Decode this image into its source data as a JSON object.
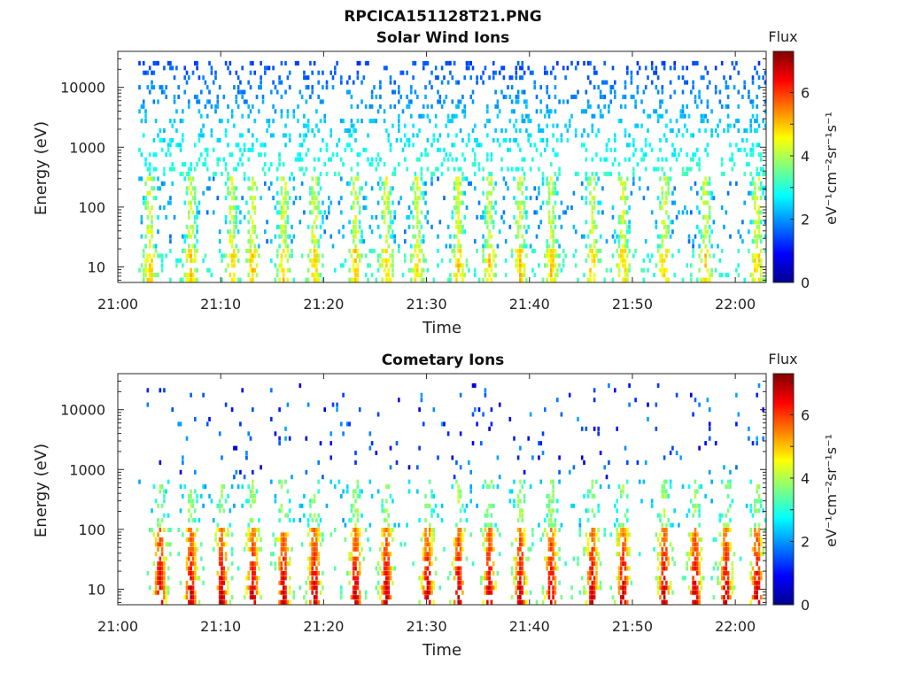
{
  "figure_title": "RPCICA151128T21.PNG",
  "chart_data": [
    {
      "type": "heatmap",
      "title": "Solar Wind Ions",
      "xlabel": "Time",
      "ylabel": "Energy (eV)",
      "x_ticks": [
        "21:00",
        "21:10",
        "21:20",
        "21:30",
        "21:40",
        "21:50",
        "22:00"
      ],
      "x_range": [
        "21:00",
        "22:03"
      ],
      "y_scale": "log",
      "y_ticks": [
        "10",
        "100",
        "1000",
        "10000"
      ],
      "y_range": [
        5.5,
        40000
      ],
      "colorbar": {
        "title": "Flux",
        "label": "eV⁻¹cm⁻²sr⁻¹s⁻¹",
        "ticks": [
          "0",
          "2",
          "4",
          "6"
        ],
        "range": [
          0,
          7.3
        ],
        "colormap": "jet"
      },
      "data_start": "21:02",
      "data_end": "22:03",
      "structure": "sparse scatter of low flux (~1-3) across 20-30000 eV; enhanced bursts up to ~5 below 300 eV",
      "burst_times": [
        "21:03",
        "21:07",
        "21:11",
        "21:13",
        "21:16",
        "21:19",
        "21:23",
        "21:26",
        "21:29",
        "21:33",
        "21:36",
        "21:39",
        "21:42",
        "21:46",
        "21:49",
        "21:53",
        "21:57",
        "22:02"
      ]
    },
    {
      "type": "heatmap",
      "title": "Cometary Ions",
      "xlabel": "Time",
      "ylabel": "Energy (eV)",
      "x_ticks": [
        "21:00",
        "21:10",
        "21:20",
        "21:30",
        "21:40",
        "21:50",
        "22:00"
      ],
      "x_range": [
        "21:00",
        "22:03"
      ],
      "y_scale": "log",
      "y_ticks": [
        "10",
        "100",
        "1000",
        "10000"
      ],
      "y_range": [
        5.5,
        40000
      ],
      "colorbar": {
        "title": "Flux",
        "label": "eV⁻¹cm⁻²sr⁻¹s⁻¹",
        "ticks": [
          "0",
          "2",
          "4",
          "6"
        ],
        "range": [
          0,
          7.3
        ],
        "colormap": "jet"
      },
      "data_start": "21:02",
      "data_end": "22:03",
      "structure": "strong bursts (flux ~5-7) concentrated at 8-100 eV, fading upward to ~500 eV; sparse low flux above 1000 eV",
      "burst_times": [
        "21:04",
        "21:07",
        "21:10",
        "21:13",
        "21:16",
        "21:19",
        "21:23",
        "21:26",
        "21:30",
        "21:33",
        "21:36",
        "21:39",
        "21:42",
        "21:46",
        "21:49",
        "21:53",
        "21:56",
        "21:59",
        "22:02"
      ]
    }
  ]
}
